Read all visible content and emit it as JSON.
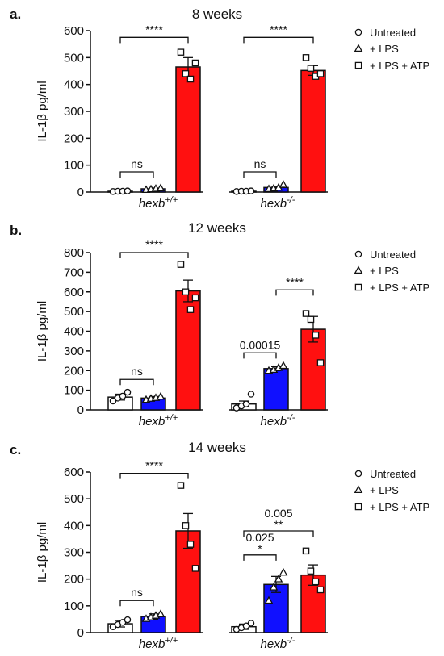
{
  "chart_data": [
    {
      "type": "bar",
      "panel": "a.",
      "title": "8 weeks",
      "ylabel": "IL-1β pg/ml",
      "ylim": [
        0,
        600
      ],
      "yticks": [
        0,
        100,
        200,
        300,
        400,
        500,
        600
      ],
      "groups": [
        {
          "name": "hexb",
          "sup": "+/+"
        },
        {
          "name": "hexb",
          "sup": "-/-"
        }
      ],
      "series": [
        {
          "name": "Untreated",
          "marker": "circle",
          "color": "#ffffff",
          "values": [
            3,
            3
          ],
          "errors": [
            1,
            1
          ],
          "points": [
            [
              2,
              3,
              3,
              4
            ],
            [
              2,
              3,
              3,
              4
            ]
          ]
        },
        {
          "name": "+ LPS",
          "marker": "triangle",
          "color": "#1010ff",
          "values": [
            12,
            17
          ],
          "errors": [
            3,
            5
          ],
          "points": [
            [
              9,
              11,
              13,
              15
            ],
            [
              12,
              14,
              17,
              28
            ]
          ]
        },
        {
          "name": "+ LPS + ATP",
          "marker": "square",
          "color": "#ff1010",
          "values": [
            465,
            452
          ],
          "errors": [
            35,
            18
          ],
          "points": [
            [
              520,
              440,
              420,
              480
            ],
            [
              500,
              460,
              430,
              440
            ]
          ]
        }
      ],
      "comparisons": [
        {
          "group": 0,
          "from": 0,
          "to": 1,
          "label": "ns",
          "y": 75
        },
        {
          "group": 0,
          "from": 0,
          "to": 2,
          "label": "****",
          "y": 575
        },
        {
          "group": 1,
          "from": 0,
          "to": 1,
          "label": "ns",
          "y": 75
        },
        {
          "group": 1,
          "from": 0,
          "to": 2,
          "label": "****",
          "y": 575
        }
      ]
    },
    {
      "type": "bar",
      "panel": "b.",
      "title": "12 weeks",
      "ylabel": "IL-1β pg/ml",
      "ylim": [
        0,
        800
      ],
      "yticks": [
        0,
        100,
        200,
        300,
        400,
        500,
        600,
        700,
        800
      ],
      "groups": [
        {
          "name": "hexb",
          "sup": "+/+"
        },
        {
          "name": "hexb",
          "sup": "-/-"
        }
      ],
      "series": [
        {
          "name": "Untreated",
          "marker": "circle",
          "color": "#ffffff",
          "values": [
            65,
            30
          ],
          "errors": [
            15,
            15
          ],
          "points": [
            [
              45,
              60,
              70,
              90
            ],
            [
              10,
              20,
              30,
              80
            ]
          ]
        },
        {
          "name": "+ LPS",
          "marker": "triangle",
          "color": "#1010ff",
          "values": [
            60,
            210
          ],
          "errors": [
            8,
            10
          ],
          "points": [
            [
              52,
              58,
              62,
              68
            ],
            [
              200,
              205,
              215,
              225
            ]
          ]
        },
        {
          "name": "+ LPS + ATP",
          "marker": "square",
          "color": "#ff1010",
          "values": [
            605,
            410
          ],
          "errors": [
            55,
            65
          ],
          "points": [
            [
              740,
              600,
              510,
              570
            ],
            [
              490,
              460,
              380,
              240
            ]
          ]
        }
      ],
      "comparisons": [
        {
          "group": 0,
          "from": 0,
          "to": 1,
          "label": "ns",
          "y": 155
        },
        {
          "group": 0,
          "from": 0,
          "to": 2,
          "label": "****",
          "y": 800
        },
        {
          "group": 1,
          "from": 1,
          "to": 2,
          "label": "****",
          "y": 610
        },
        {
          "group": 1,
          "from": 0,
          "to": 1,
          "label": "0.00015",
          "y": 290
        }
      ]
    },
    {
      "type": "bar",
      "panel": "c.",
      "title": "14 weeks",
      "ylabel": "IL-1β pg/ml",
      "ylim": [
        0,
        600
      ],
      "yticks": [
        0,
        100,
        200,
        300,
        400,
        500,
        600
      ],
      "groups": [
        {
          "name": "hexb",
          "sup": "+/+"
        },
        {
          "name": "hexb",
          "sup": "-/-"
        }
      ],
      "series": [
        {
          "name": "Untreated",
          "marker": "circle",
          "color": "#ffffff",
          "values": [
            33,
            22
          ],
          "errors": [
            12,
            10
          ],
          "points": [
            [
              22,
              30,
              38,
              48
            ],
            [
              12,
              18,
              25,
              35
            ]
          ]
        },
        {
          "name": "+ LPS",
          "marker": "triangle",
          "color": "#1010ff",
          "values": [
            60,
            180
          ],
          "errors": [
            10,
            30
          ],
          "points": [
            [
              52,
              58,
              64,
              70
            ],
            [
              120,
              170,
              200,
              225
            ]
          ]
        },
        {
          "name": "+ LPS + ATP",
          "marker": "square",
          "color": "#ff1010",
          "values": [
            380,
            215
          ],
          "errors": [
            65,
            38
          ],
          "points": [
            [
              550,
              400,
              330,
              240
            ],
            [
              305,
              230,
              190,
              160
            ]
          ]
        }
      ],
      "comparisons": [
        {
          "group": 0,
          "from": 0,
          "to": 1,
          "label": "ns",
          "y": 120
        },
        {
          "group": 0,
          "from": 0,
          "to": 2,
          "label": "****",
          "y": 595
        },
        {
          "group": 1,
          "from": 0,
          "to": 1,
          "label": "0.025",
          "y": 290,
          "stars": "*"
        },
        {
          "group": 1,
          "from": 0,
          "to": 2,
          "label": "0.005",
          "y": 380,
          "stars": "**"
        }
      ]
    }
  ]
}
